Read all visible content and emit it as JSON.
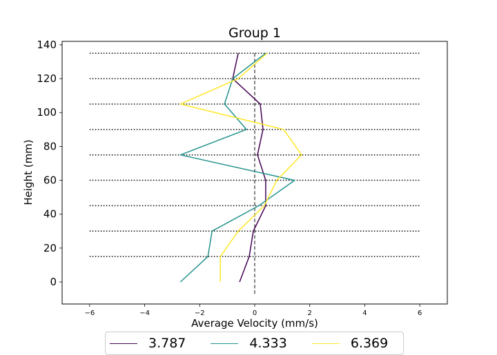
{
  "chart_data": {
    "type": "line",
    "title": "Group 1",
    "xlabel": "Average Velocity (mm/s)",
    "ylabel": "Height (mm)",
    "xlim": [
      -7,
      7
    ],
    "ylim": [
      -13,
      142
    ],
    "x_ticks": [
      -6,
      -4,
      -2,
      0,
      2,
      4,
      6
    ],
    "y_ticks": [
      0,
      20,
      40,
      60,
      80,
      100,
      120,
      140
    ],
    "x_tick_labels": [
      "−6",
      "−4",
      "−2",
      "0",
      "2",
      "4",
      "6"
    ],
    "y_tick_labels": [
      "0",
      "20",
      "40",
      "60",
      "80",
      "100",
      "120",
      "140"
    ],
    "grid": false,
    "reference_lines": {
      "horizontal_dotted_at": [
        15,
        30,
        45,
        60,
        75,
        90,
        105,
        120,
        135
      ],
      "horizontal_span": [
        -6,
        6
      ],
      "vertical_dashed_at": 0
    },
    "legend_placement": "bottom-center",
    "series": [
      {
        "name": "3.787",
        "color": "#440154",
        "points": [
          [
            -0.55,
            0
          ],
          [
            -0.2,
            15
          ],
          [
            -0.05,
            30
          ],
          [
            0.4,
            45
          ],
          [
            0.4,
            60
          ],
          [
            0.1,
            75
          ],
          [
            0.3,
            90
          ],
          [
            0.2,
            105
          ],
          [
            -0.8,
            120
          ],
          [
            -0.6,
            135
          ]
        ]
      },
      {
        "name": "4.333",
        "color": "#21918c",
        "points": [
          [
            -2.7,
            0
          ],
          [
            -1.7,
            15
          ],
          [
            -1.55,
            30
          ],
          [
            0.15,
            45
          ],
          [
            1.45,
            60
          ],
          [
            -2.7,
            75
          ],
          [
            -0.3,
            90
          ],
          [
            -1.1,
            105
          ],
          [
            -0.8,
            120
          ],
          [
            0.4,
            135
          ]
        ]
      },
      {
        "name": "6.369",
        "color": "#fde725",
        "points": [
          [
            -1.25,
            0
          ],
          [
            -1.25,
            15
          ],
          [
            -0.6,
            30
          ],
          [
            0.35,
            45
          ],
          [
            0.8,
            60
          ],
          [
            1.7,
            75
          ],
          [
            1.05,
            90
          ],
          [
            -2.7,
            105
          ],
          [
            -0.6,
            120
          ],
          [
            0.45,
            135
          ]
        ]
      }
    ]
  }
}
